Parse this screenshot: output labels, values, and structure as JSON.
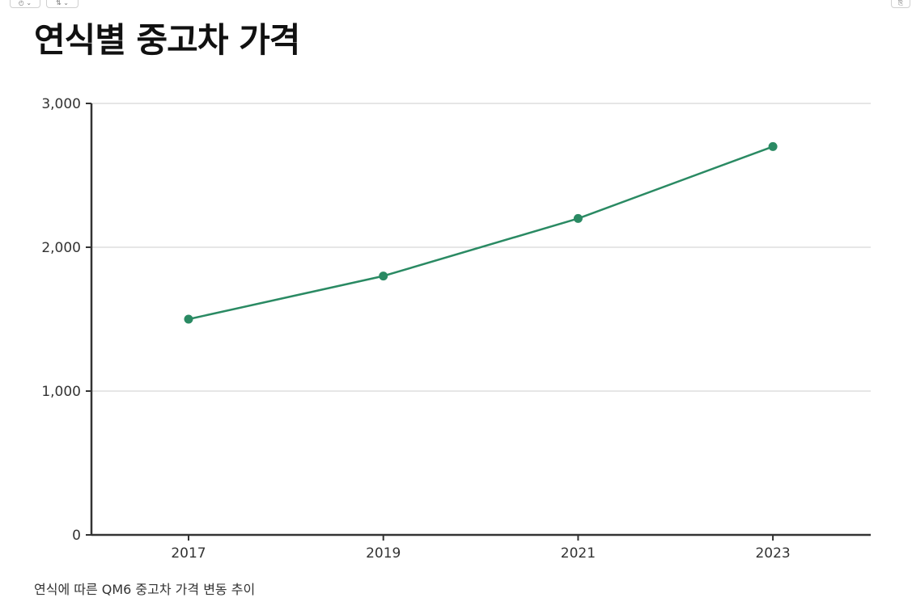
{
  "title": "연식별 중고차 가격",
  "caption": "연식에 따른 QM6 중고차 가격 변동 추이",
  "colors": {
    "line": "#2a8a63",
    "axis": "#333333",
    "grid": "#cccccc"
  },
  "toolbar": {
    "icons": [
      "history-icon",
      "expand-icon",
      "copy-icon"
    ]
  },
  "chart_data": {
    "type": "line",
    "title": "연식별 중고차 가격",
    "x": [
      "2017",
      "2019",
      "2021",
      "2023"
    ],
    "series": [
      {
        "values": [
          1500,
          1800,
          2200,
          2700
        ]
      }
    ],
    "xlabel": "",
    "ylabel": "",
    "ylim": [
      0,
      3000
    ],
    "yticks": [
      0,
      1000,
      2000,
      3000
    ],
    "ytick_labels": [
      "0",
      "1,000",
      "2,000",
      "3,000"
    ],
    "grid": true,
    "legend": "none"
  }
}
